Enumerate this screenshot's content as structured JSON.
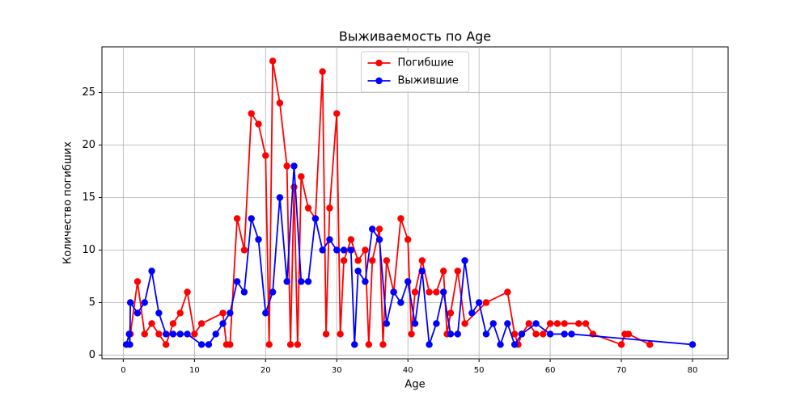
{
  "chart_data": {
    "type": "line",
    "title": "Выживаемость по Age",
    "x_label": "Age",
    "y_label": "Количество погибших",
    "xlim": [
      -3,
      85
    ],
    "ylim": [
      -0.35,
      29.35
    ],
    "xticks": [
      0,
      10,
      20,
      30,
      40,
      50,
      60,
      70,
      80
    ],
    "yticks": [
      0,
      5,
      10,
      15,
      20,
      25
    ],
    "grid": true,
    "legend": "upper center",
    "series": [
      {
        "name": "Погибшие",
        "color": "#ff0000",
        "x": [
          1,
          2,
          3,
          4,
          5,
          6,
          7,
          8,
          9,
          10,
          11,
          14,
          14.5,
          15,
          16,
          17,
          18,
          19,
          20,
          20.5,
          21,
          22,
          23,
          23.5,
          24,
          24.5,
          25,
          26,
          27,
          28,
          28.5,
          29,
          30,
          30.5,
          31,
          32,
          33,
          34,
          34.5,
          35,
          36,
          36.5,
          37,
          38,
          39,
          40,
          40.5,
          41,
          42,
          43,
          44,
          45,
          45.5,
          46,
          47,
          48,
          51,
          54,
          55,
          55.5,
          56,
          57,
          58,
          59,
          60,
          61,
          62,
          64,
          65,
          66,
          70,
          70.5,
          71,
          74
        ],
        "values": [
          2,
          7,
          2,
          3,
          2,
          1,
          3,
          4,
          6,
          2,
          3,
          4,
          1,
          1,
          13,
          10,
          23,
          22,
          19,
          1,
          28,
          24,
          18,
          1,
          16,
          1,
          17,
          14,
          13,
          27,
          2,
          14,
          23,
          2,
          9,
          11,
          9,
          10,
          1,
          9,
          12,
          1,
          9,
          6,
          13,
          11,
          2,
          6,
          9,
          6,
          6,
          8,
          2,
          4,
          8,
          3,
          5,
          6,
          2,
          1,
          2,
          3,
          2,
          2,
          3,
          3,
          3,
          3,
          3,
          2,
          1,
          2,
          2,
          1
        ]
      },
      {
        "name": "Выжившие",
        "color": "#0000ff",
        "x": [
          0.42,
          0.83,
          0.92,
          1,
          2,
          3,
          4,
          5,
          6,
          7,
          8,
          9,
          11,
          12,
          13,
          14,
          15,
          16,
          17,
          18,
          19,
          20,
          21,
          22,
          23,
          24,
          25,
          26,
          27,
          28,
          29,
          30,
          31,
          32,
          32.5,
          33,
          34,
          35,
          36,
          37,
          38,
          39,
          40,
          41,
          42,
          43,
          44,
          45,
          46,
          47,
          48,
          49,
          50,
          51,
          52,
          53,
          54,
          55,
          56,
          58,
          60,
          62,
          63,
          80
        ],
        "values": [
          1,
          2,
          1,
          5,
          4,
          5,
          8,
          4,
          2,
          2,
          2,
          2,
          1,
          1,
          2,
          3,
          4,
          7,
          6,
          13,
          11,
          4,
          6,
          15,
          7,
          18,
          7,
          7,
          13,
          10,
          11,
          10,
          10,
          10,
          1,
          8,
          7,
          12,
          11,
          3,
          6,
          5,
          7,
          3,
          8,
          1,
          3,
          6,
          2,
          2,
          9,
          4,
          5,
          2,
          3,
          1,
          3,
          1,
          2,
          3,
          2,
          2,
          2,
          1
        ]
      }
    ]
  }
}
